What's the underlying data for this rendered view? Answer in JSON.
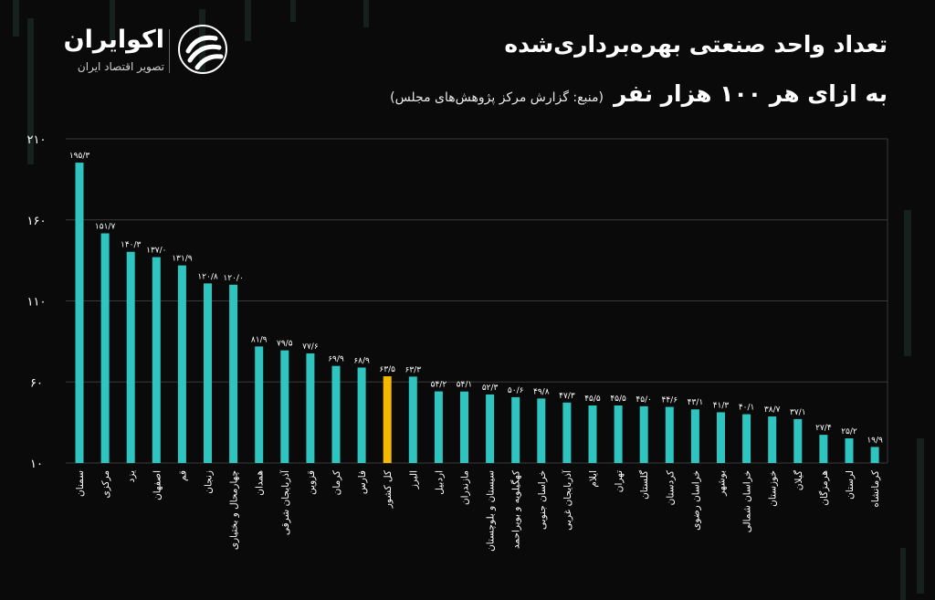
{
  "brand": {
    "name": "اکوایران",
    "tagline": "تصویر اقتصاد ایران"
  },
  "header": {
    "title_line1": "تعداد واحد صنعتی بهره‌برداری‌شده",
    "title_line2": "به ازای هر ۱۰۰ هزار نفر",
    "source": "(منبع: گزارش مرکز پژوهش‌های مجلس)"
  },
  "colors": {
    "bar": "#2ec4c0",
    "highlight": "#f5b800",
    "grid": "#3a3a3a",
    "background": "#0a0a0a"
  },
  "chart_data": {
    "type": "bar",
    "title": "تعداد واحد صنعتی بهره‌برداری‌شده به ازای هر ۱۰۰ هزار نفر",
    "ylim": [
      10,
      210
    ],
    "yticks": [
      10,
      60,
      110,
      160,
      210
    ],
    "ytick_labels": [
      "۱۰",
      "۶۰",
      "۱۱۰",
      "۱۶۰",
      "۲۱۰"
    ],
    "grid": true,
    "highlight_category": "کل کشور",
    "categories": [
      "سمنان",
      "مرکزی",
      "یزد",
      "اصفهان",
      "قم",
      "زنجان",
      "چهارمحال و بختیاری",
      "همدان",
      "آذربایجان شرقی",
      "قزوین",
      "کرمان",
      "فارس",
      "کل کشور",
      "البرز",
      "اردبیل",
      "مازندران",
      "سیستان و بلوچستان",
      "کهگیلویه و بویراحمد",
      "خراسان جنوبی",
      "آذربایجان غربی",
      "ایلام",
      "تهران",
      "گلستان",
      "کردستان",
      "خراسان رضوی",
      "بوشهر",
      "خراسان شمالی",
      "خوزستان",
      "گیلان",
      "هرمزگان",
      "لرستان",
      "کرمانشاه"
    ],
    "values": [
      195.3,
      151.7,
      140.3,
      137.0,
      131.9,
      120.8,
      120.0,
      81.9,
      79.5,
      77.6,
      69.9,
      68.9,
      63.5,
      63.3,
      54.2,
      54.1,
      52.3,
      50.6,
      49.8,
      47.3,
      45.5,
      45.5,
      45.0,
      44.6,
      43.1,
      41.3,
      40.1,
      38.7,
      37.1,
      27.4,
      25.2,
      19.9
    ],
    "value_labels": [
      "۱۹۵/۳",
      "۱۵۱/۷",
      "۱۴۰/۳",
      "۱۳۷/۰",
      "۱۳۱/۹",
      "۱۲۰/۸",
      "۱۲۰/۰",
      "۸۱/۹",
      "۷۹/۵",
      "۷۷/۶",
      "۶۹/۹",
      "۶۸/۹",
      "۶۳/۵",
      "۶۳/۳",
      "۵۴/۲",
      "۵۴/۱",
      "۵۲/۳",
      "۵۰/۶",
      "۴۹/۸",
      "۴۷/۳",
      "۴۵/۵",
      "۴۵/۵",
      "۴۵/۰",
      "۴۴/۶",
      "۴۳/۱",
      "۴۱/۳",
      "۴۰/۱",
      "۳۸/۷",
      "۳۷/۱",
      "۲۷/۴",
      "۲۵/۲",
      "۱۹/۹"
    ]
  }
}
